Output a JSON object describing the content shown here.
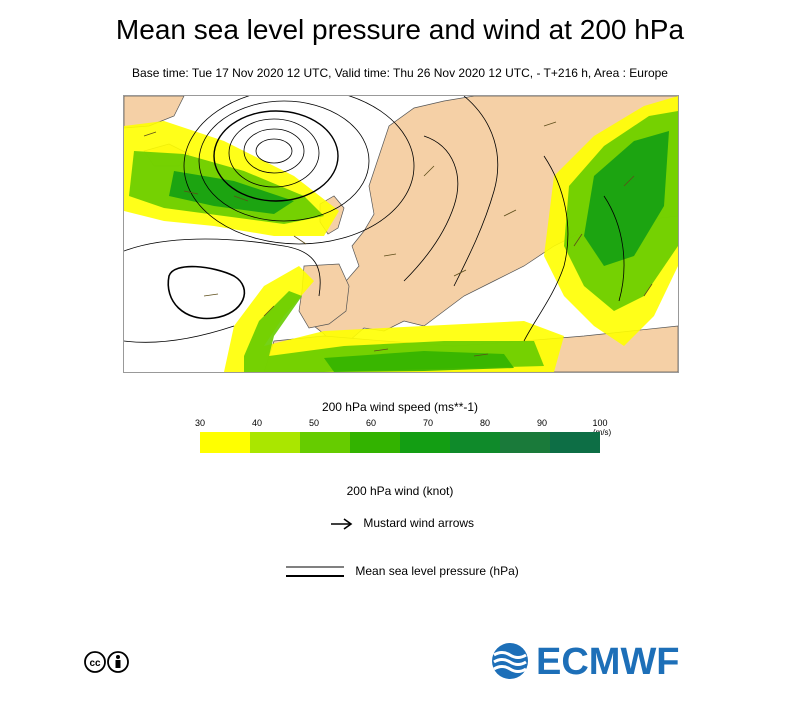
{
  "header": {
    "title": "Mean sea level pressure and wind at 200 hPa",
    "subtitle": "Base time: Tue 17 Nov 2020 12 UTC, Valid time: Thu 26 Nov 2020 12 UTC, - T+216 h, Area : Europe"
  },
  "colors": {
    "sea": "#ffffff",
    "land": "#f5d0a6",
    "isobar": "#000000"
  },
  "scale": {
    "title": "200 hPa wind speed (ms**-1)",
    "unit": "(m/s)",
    "ticks": [
      "30",
      "40",
      "50",
      "60",
      "70",
      "80",
      "90",
      "100"
    ],
    "colors": [
      "#ffff00",
      "#aae600",
      "#66cc00",
      "#33b300",
      "#139e13",
      "#0f8a2a",
      "#1a7a3a",
      "#0d6e45"
    ]
  },
  "legend": {
    "wind_title": "200 hPa wind (knot)",
    "arrow_label": "Mustard wind arrows",
    "pressure_label": "Mean sea level pressure (hPa)"
  },
  "logo": {
    "text": "ECMWF",
    "color": "#1d6fb8"
  }
}
